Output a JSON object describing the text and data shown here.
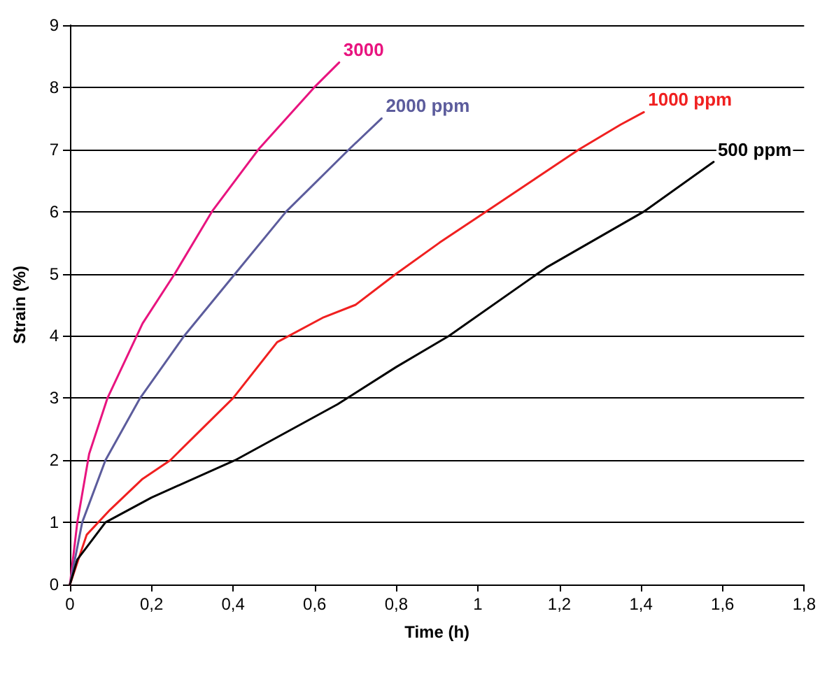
{
  "chart_data": {
    "type": "line",
    "xlabel": "Time (h)",
    "ylabel": "Strain (%)",
    "xlim": [
      0,
      1.8
    ],
    "xticks": [
      0,
      {
        "value": 0.2,
        "label": "0,2"
      },
      {
        "value": 0.4,
        "label": "0,4"
      },
      {
        "value": 0.6,
        "label": "0,6"
      },
      {
        "value": 0.8,
        "label": "0,8"
      },
      1,
      {
        "value": 1.2,
        "label": "1,2"
      },
      {
        "value": 1.4,
        "label": "1,4"
      },
      {
        "value": 1.6,
        "label": "1,6"
      },
      {
        "value": 1.8,
        "label": "1,8"
      }
    ],
    "ylim": [
      0,
      9
    ],
    "yticks": [
      0,
      1,
      2,
      3,
      4,
      5,
      6,
      7,
      8,
      9
    ],
    "grid": "y",
    "legend": false,
    "marker": "none",
    "line_style": "solid",
    "series": [
      {
        "name": "3000",
        "color": "#e8147f",
        "x": [
          0,
          0.018,
          0.047,
          0.092,
          0.178,
          0.257,
          0.348,
          0.462,
          0.599,
          0.66
        ],
        "values": [
          0,
          1.0,
          2.1,
          3.0,
          4.2,
          5.0,
          6.0,
          7.0,
          8.0,
          8.4
        ]
      },
      {
        "name": "2000 ppm",
        "color": "#5c5c9c",
        "x": [
          0,
          0.03,
          0.087,
          0.172,
          0.28,
          0.405,
          0.53,
          0.684,
          0.764
        ],
        "values": [
          0,
          1.0,
          2.0,
          3.0,
          4.0,
          5.0,
          6.0,
          7.0,
          7.5
        ]
      },
      {
        "name": "1000 ppm",
        "color": "#f02020",
        "x": [
          0,
          0.041,
          0.098,
          0.178,
          0.246,
          0.4,
          0.508,
          0.622,
          0.7,
          0.8,
          0.906,
          1.02,
          1.134,
          1.248,
          1.35,
          1.407
        ],
        "values": [
          0,
          0.8,
          1.2,
          1.7,
          2.0,
          3.0,
          3.9,
          4.3,
          4.5,
          5.0,
          5.5,
          6.0,
          6.5,
          7.0,
          7.4,
          7.6
        ]
      },
      {
        "name": "500 ppm",
        "color": "#000000",
        "x": [
          0,
          0.018,
          0.087,
          0.2,
          0.405,
          0.656,
          0.8,
          0.929,
          1.168,
          1.407,
          1.578
        ],
        "values": [
          0,
          0.4,
          1.0,
          1.4,
          2.0,
          2.9,
          3.5,
          4.0,
          5.1,
          6.0,
          6.8
        ]
      }
    ]
  }
}
